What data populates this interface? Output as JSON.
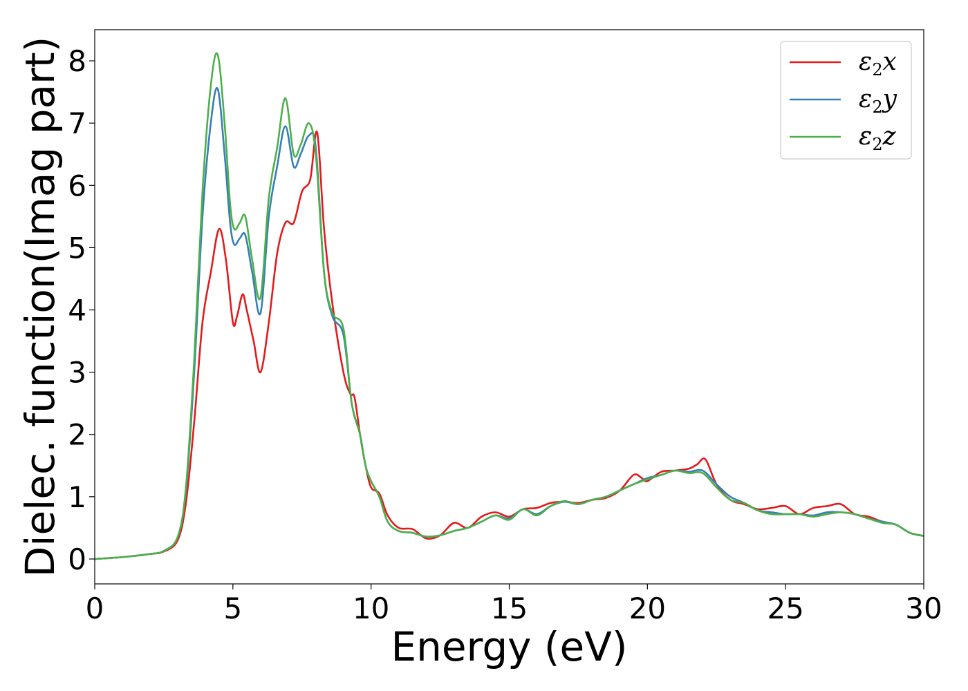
{
  "chart_data": {
    "type": "line",
    "xlabel": "Energy (eV)",
    "ylabel": "Dielec. function(Imag part)",
    "xlim": [
      0,
      30
    ],
    "ylim": [
      -0.4,
      8.5
    ],
    "xticks": [
      0,
      5,
      10,
      15,
      20,
      25,
      30
    ],
    "yticks": [
      0,
      1,
      2,
      3,
      4,
      5,
      6,
      7,
      8
    ],
    "grid": false,
    "legend_position": "top-right",
    "colors": {
      "x": "#e41a1c",
      "y": "#377eb8",
      "z": "#4daf4a"
    },
    "series": [
      {
        "name": "ε2x",
        "legend_base": "ε",
        "legend_sub": "2",
        "legend_var": "x",
        "color": "#e41a1c",
        "x": [
          0,
          1,
          2,
          2.5,
          3,
          3.3,
          3.6,
          3.9,
          4.2,
          4.5,
          4.75,
          5,
          5.15,
          5.35,
          5.5,
          5.75,
          6,
          6.3,
          6.6,
          6.9,
          7.2,
          7.5,
          7.8,
          8.05,
          8.3,
          8.6,
          9,
          9.25,
          9.4,
          9.6,
          9.8,
          10,
          10.3,
          10.6,
          11,
          11.5,
          12,
          12.5,
          13,
          13.5,
          14,
          14.5,
          15,
          15.5,
          16,
          16.5,
          17,
          17.5,
          18,
          18.5,
          19,
          19.5,
          19.8,
          20,
          20.5,
          21,
          21.5,
          21.8,
          22.1,
          22.5,
          23,
          23.5,
          24,
          24.5,
          25,
          25.5,
          26,
          26.5,
          27,
          27.5,
          28,
          28.5,
          29,
          29.5,
          30
        ],
        "y": [
          0,
          0.03,
          0.08,
          0.12,
          0.3,
          0.9,
          2.2,
          3.8,
          4.6,
          5.3,
          4.8,
          3.8,
          3.9,
          4.25,
          4.0,
          3.5,
          3.0,
          3.8,
          4.9,
          5.4,
          5.4,
          5.9,
          6.1,
          6.85,
          5.3,
          4.1,
          3.0,
          2.65,
          2.6,
          2.0,
          1.5,
          1.15,
          1.05,
          0.7,
          0.5,
          0.48,
          0.33,
          0.38,
          0.58,
          0.5,
          0.68,
          0.75,
          0.68,
          0.8,
          0.82,
          0.9,
          0.92,
          0.9,
          0.95,
          0.98,
          1.1,
          1.35,
          1.3,
          1.25,
          1.4,
          1.42,
          1.45,
          1.52,
          1.6,
          1.2,
          0.95,
          0.88,
          0.8,
          0.82,
          0.85,
          0.72,
          0.82,
          0.85,
          0.88,
          0.72,
          0.68,
          0.6,
          0.55,
          0.42,
          0.37
        ]
      },
      {
        "name": "ε2y",
        "legend_base": "ε",
        "legend_sub": "2",
        "legend_var": "y",
        "color": "#377eb8",
        "x": [
          0,
          1,
          2,
          2.5,
          3,
          3.3,
          3.6,
          3.9,
          4.2,
          4.45,
          4.7,
          4.9,
          5.05,
          5.25,
          5.45,
          5.7,
          6,
          6.3,
          6.6,
          6.9,
          7.2,
          7.45,
          7.75,
          8,
          8.3,
          8.6,
          9,
          9.3,
          9.6,
          9.8,
          10,
          10.3,
          10.6,
          11,
          11.5,
          12,
          12.5,
          13,
          13.5,
          14,
          14.5,
          15,
          15.5,
          16,
          16.5,
          17,
          17.5,
          18,
          18.5,
          19,
          19.5,
          20,
          20.5,
          21,
          21.5,
          22,
          22.5,
          23,
          23.5,
          24,
          24.5,
          25,
          25.5,
          26,
          26.5,
          27,
          27.5,
          28,
          28.5,
          29,
          29.5,
          30
        ],
        "y": [
          0,
          0.03,
          0.08,
          0.13,
          0.35,
          1.1,
          3.0,
          5.5,
          7.0,
          7.55,
          6.5,
          5.4,
          5.05,
          5.15,
          5.2,
          4.6,
          3.95,
          5.5,
          6.3,
          6.95,
          6.3,
          6.5,
          6.8,
          6.6,
          4.6,
          3.9,
          3.6,
          2.5,
          2.0,
          1.5,
          1.25,
          1.0,
          0.6,
          0.45,
          0.42,
          0.36,
          0.38,
          0.45,
          0.5,
          0.6,
          0.7,
          0.65,
          0.8,
          0.72,
          0.85,
          0.92,
          0.88,
          0.95,
          1.0,
          1.1,
          1.2,
          1.3,
          1.35,
          1.42,
          1.4,
          1.42,
          1.2,
          1.0,
          0.9,
          0.78,
          0.75,
          0.72,
          0.72,
          0.7,
          0.75,
          0.75,
          0.72,
          0.65,
          0.6,
          0.55,
          0.42,
          0.37
        ]
      },
      {
        "name": "ε2z",
        "legend_base": "ε",
        "legend_sub": "2",
        "legend_var": "z",
        "color": "#4daf4a",
        "x": [
          0,
          1,
          2,
          2.5,
          3,
          3.3,
          3.6,
          3.9,
          4.2,
          4.45,
          4.7,
          4.9,
          5.05,
          5.25,
          5.45,
          5.7,
          6,
          6.3,
          6.6,
          6.9,
          7.2,
          7.45,
          7.75,
          8,
          8.3,
          8.6,
          9,
          9.3,
          9.6,
          9.8,
          10,
          10.3,
          10.6,
          11,
          11.5,
          12,
          12.5,
          13,
          13.5,
          14,
          14.5,
          15,
          15.5,
          16,
          16.5,
          17,
          17.5,
          18,
          18.5,
          19,
          19.5,
          20,
          20.5,
          21,
          21.5,
          22,
          22.5,
          23,
          23.5,
          24,
          24.5,
          25,
          25.5,
          26,
          26.5,
          27,
          27.5,
          28,
          28.5,
          29,
          29.5,
          30
        ],
        "y": [
          0,
          0.03,
          0.08,
          0.13,
          0.35,
          1.15,
          3.2,
          5.9,
          7.6,
          8.1,
          7.0,
          5.7,
          5.3,
          5.4,
          5.5,
          4.8,
          4.2,
          5.8,
          6.6,
          7.4,
          6.5,
          6.65,
          7.0,
          6.5,
          4.6,
          3.95,
          3.7,
          2.5,
          2.0,
          1.5,
          1.25,
          1.0,
          0.6,
          0.45,
          0.42,
          0.36,
          0.38,
          0.45,
          0.5,
          0.6,
          0.7,
          0.63,
          0.8,
          0.7,
          0.85,
          0.93,
          0.88,
          0.95,
          1.0,
          1.1,
          1.2,
          1.28,
          1.35,
          1.42,
          1.38,
          1.38,
          1.15,
          0.95,
          0.9,
          0.78,
          0.72,
          0.72,
          0.72,
          0.68,
          0.72,
          0.75,
          0.72,
          0.65,
          0.58,
          0.55,
          0.42,
          0.37
        ]
      }
    ]
  }
}
